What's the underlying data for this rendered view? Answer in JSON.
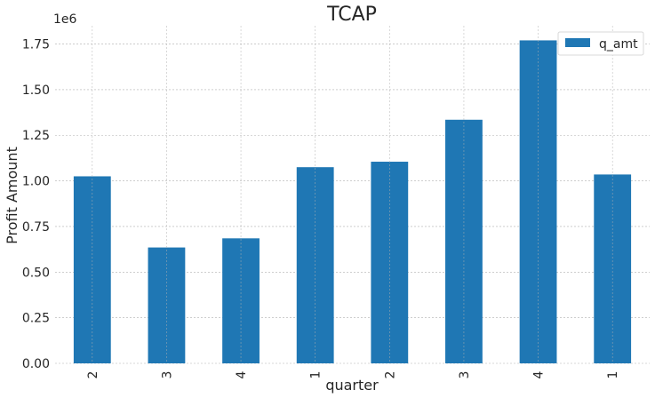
{
  "chart_data": {
    "type": "bar",
    "title": "TCAP",
    "xlabel": "quarter",
    "ylabel": "Profit Amount",
    "y_offset_label": "1e6",
    "categories": [
      "2",
      "3",
      "4",
      "1",
      "2",
      "3",
      "4",
      "1"
    ],
    "series": [
      {
        "name": "q_amt",
        "values": [
          1025000,
          635000,
          685000,
          1075000,
          1105000,
          1335000,
          1770000,
          1035000
        ]
      }
    ],
    "ylim": [
      0,
      1850000
    ],
    "yticks": [
      0,
      250000,
      500000,
      750000,
      1000000,
      1250000,
      1500000,
      1750000
    ],
    "ytick_labels": [
      "0.00",
      "0.25",
      "0.50",
      "0.75",
      "1.00",
      "1.25",
      "1.50",
      "1.75"
    ],
    "grid": true,
    "legend_position": "top-right",
    "bar_color": "#1f77b4",
    "grid_color": "#b0b0b0"
  }
}
